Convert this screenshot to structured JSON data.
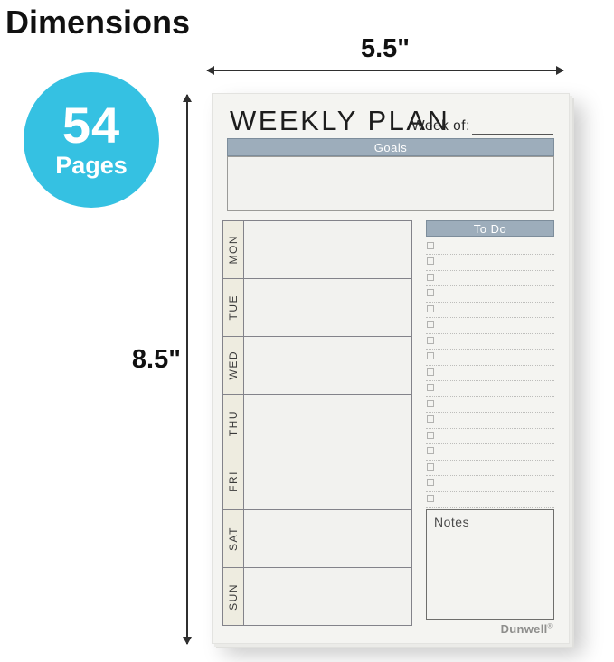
{
  "page": {
    "title": "Dimensions"
  },
  "badge": {
    "count": "54",
    "label": "Pages",
    "color": "#35c1e2"
  },
  "dimensions": {
    "width_label": "5.5\"",
    "height_label": "8.5\""
  },
  "planner": {
    "title": "WEEKLY PLAN",
    "week_of_label": "Week of:",
    "goals_header": "Goals",
    "todo_header": "To Do",
    "notes_label": "Notes",
    "brand": "Dunwell",
    "brand_mark": "®",
    "days": [
      "MON",
      "TUE",
      "WED",
      "THU",
      "FRI",
      "SAT",
      "SUN"
    ],
    "todo_rows": 17,
    "header_bar_color": "#9dadbb",
    "header_bar_border": "#7d8d9b"
  }
}
